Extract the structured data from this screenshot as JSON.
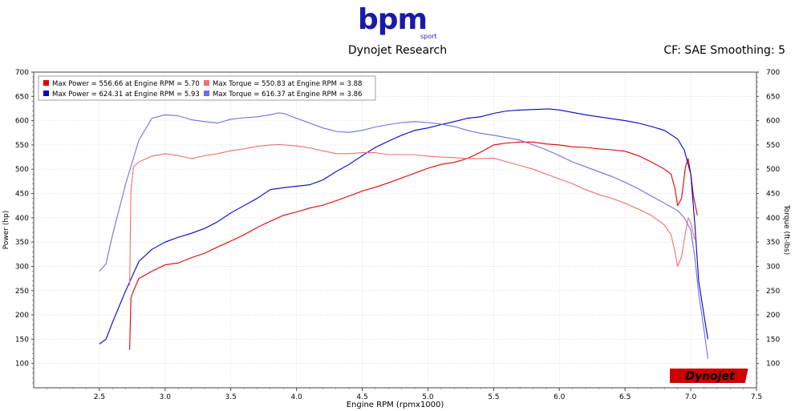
{
  "header": {
    "logo_text": "bpm",
    "logo_sub": "sport",
    "title": "Dynojet Research",
    "cf_label": "CF: SAE Smoothing: 5"
  },
  "brand": {
    "text": "Dynojet"
  },
  "colors": {
    "run1": "#e00000",
    "run1_light": "#f07070",
    "run2": "#0000c8",
    "run2_light": "#6e6ee6"
  },
  "chart_data": {
    "type": "line",
    "title": "Dynojet Research",
    "xlabel": "Engine RPM (rpmx1000)",
    "ylabel_left": "Power (hp)",
    "ylabel_right": "Torque (ft-lbs)",
    "xlim": [
      2.0,
      7.5
    ],
    "ylim": [
      50,
      700
    ],
    "x_ticks": [
      "2.5",
      "3.0",
      "3.5",
      "4.0",
      "4.5",
      "5.0",
      "5.5",
      "6.0",
      "6.5",
      "7.0",
      "7.5"
    ],
    "y_ticks": [
      "100",
      "150",
      "200",
      "250",
      "300",
      "350",
      "400",
      "450",
      "500",
      "550",
      "600",
      "650",
      "700"
    ],
    "grid": true,
    "legend_position": "top-left",
    "series": [
      {
        "name": "Max Power = 556.66 at Engine RPM = 5.70",
        "color": "#e00000",
        "x": [
          2.73,
          2.74,
          2.76,
          2.8,
          2.9,
          3.0,
          3.1,
          3.2,
          3.3,
          3.4,
          3.5,
          3.6,
          3.7,
          3.8,
          3.9,
          4.0,
          4.1,
          4.2,
          4.3,
          4.4,
          4.5,
          4.6,
          4.7,
          4.8,
          4.9,
          5.0,
          5.1,
          5.2,
          5.3,
          5.4,
          5.5,
          5.6,
          5.7,
          5.8,
          5.9,
          6.0,
          6.1,
          6.2,
          6.3,
          6.4,
          6.5,
          6.6,
          6.7,
          6.8,
          6.85,
          6.88,
          6.9,
          6.93,
          6.96,
          6.98,
          7.0,
          7.02,
          7.05
        ],
        "y": [
          128,
          235,
          250,
          275,
          290,
          303,
          307,
          318,
          327,
          340,
          352,
          365,
          380,
          393,
          405,
          412,
          420,
          426,
          435,
          445,
          455,
          463,
          472,
          482,
          492,
          502,
          510,
          514,
          522,
          535,
          550,
          554,
          556,
          556,
          552,
          550,
          546,
          545,
          542,
          540,
          537,
          528,
          515,
          500,
          490,
          460,
          425,
          440,
          505,
          522,
          490,
          445,
          405
        ]
      },
      {
        "name": "Max Power = 624.31 at Engine RPM = 5.93",
        "color": "#0000c8",
        "x": [
          2.5,
          2.55,
          2.6,
          2.7,
          2.8,
          2.9,
          3.0,
          3.1,
          3.2,
          3.3,
          3.4,
          3.5,
          3.6,
          3.7,
          3.8,
          3.9,
          4.0,
          4.1,
          4.2,
          4.3,
          4.4,
          4.5,
          4.6,
          4.7,
          4.8,
          4.9,
          5.0,
          5.1,
          5.2,
          5.3,
          5.4,
          5.5,
          5.6,
          5.7,
          5.8,
          5.9,
          5.93,
          6.0,
          6.1,
          6.2,
          6.3,
          6.4,
          6.5,
          6.6,
          6.7,
          6.8,
          6.9,
          6.95,
          7.0,
          7.03,
          7.06,
          7.1,
          7.13
        ],
        "y": [
          140,
          150,
          185,
          250,
          310,
          335,
          350,
          360,
          368,
          378,
          392,
          410,
          425,
          440,
          458,
          462,
          465,
          468,
          478,
          495,
          510,
          528,
          545,
          558,
          570,
          580,
          585,
          592,
          598,
          605,
          608,
          615,
          620,
          622,
          623,
          624,
          624,
          622,
          617,
          612,
          608,
          604,
          600,
          595,
          588,
          580,
          562,
          540,
          490,
          390,
          270,
          200,
          150
        ]
      },
      {
        "name": "Max Torque = 550.83 at Engine RPM = 3.88",
        "color": "#f07070",
        "x": [
          2.73,
          2.74,
          2.76,
          2.8,
          2.9,
          3.0,
          3.1,
          3.2,
          3.3,
          3.4,
          3.5,
          3.6,
          3.7,
          3.8,
          3.88,
          3.9,
          4.0,
          4.1,
          4.2,
          4.3,
          4.4,
          4.5,
          4.6,
          4.7,
          4.8,
          4.9,
          5.0,
          5.1,
          5.2,
          5.3,
          5.4,
          5.5,
          5.6,
          5.7,
          5.8,
          5.9,
          6.0,
          6.1,
          6.2,
          6.3,
          6.4,
          6.5,
          6.6,
          6.7,
          6.8,
          6.85,
          6.88,
          6.9,
          6.93,
          6.96,
          6.98,
          7.0,
          7.03
        ],
        "y": [
          260,
          455,
          505,
          515,
          527,
          532,
          528,
          522,
          528,
          532,
          538,
          542,
          547,
          550,
          551,
          550,
          548,
          544,
          538,
          532,
          532,
          534,
          534,
          530,
          530,
          530,
          527,
          525,
          524,
          522,
          522,
          523,
          515,
          508,
          500,
          490,
          480,
          470,
          458,
          448,
          440,
          430,
          418,
          405,
          385,
          365,
          330,
          300,
          320,
          370,
          400,
          390,
          355
        ]
      },
      {
        "name": "Max Torque = 616.37 at Engine RPM = 3.86",
        "color": "#6e6ee6",
        "x": [
          2.5,
          2.55,
          2.6,
          2.7,
          2.8,
          2.9,
          3.0,
          3.1,
          3.2,
          3.3,
          3.4,
          3.5,
          3.6,
          3.7,
          3.8,
          3.86,
          3.9,
          4.0,
          4.1,
          4.2,
          4.3,
          4.4,
          4.5,
          4.6,
          4.7,
          4.8,
          4.9,
          5.0,
          5.1,
          5.2,
          5.3,
          5.4,
          5.5,
          5.6,
          5.7,
          5.8,
          5.9,
          6.0,
          6.1,
          6.2,
          6.3,
          6.4,
          6.5,
          6.6,
          6.7,
          6.8,
          6.9,
          6.95,
          7.0,
          7.03,
          7.06,
          7.1,
          7.13
        ],
        "y": [
          290,
          305,
          365,
          470,
          560,
          605,
          612,
          610,
          602,
          598,
          595,
          603,
          606,
          608,
          612,
          616,
          615,
          605,
          595,
          585,
          578,
          576,
          580,
          587,
          592,
          596,
          598,
          596,
          593,
          588,
          580,
          574,
          570,
          565,
          560,
          550,
          540,
          528,
          515,
          505,
          495,
          485,
          473,
          460,
          445,
          430,
          415,
          400,
          375,
          320,
          245,
          170,
          110
        ]
      }
    ]
  }
}
